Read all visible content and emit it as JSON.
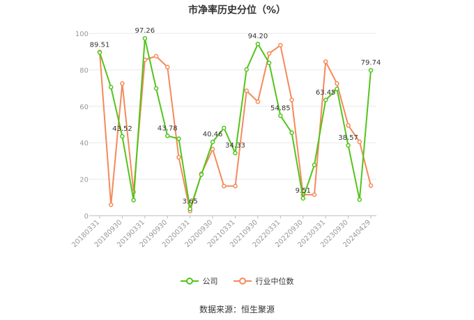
{
  "title": "市净率历史分位（%）",
  "source": "数据来源：恒生聚源",
  "colors": {
    "company": "#52c41a",
    "industry": "#f5895a",
    "grid": "#e8e8e8",
    "axis": "#bbbbbb"
  },
  "chart_data": {
    "type": "line",
    "title": "市净率历史分位（%）",
    "xlabel": "",
    "ylabel": "",
    "ylim": [
      0,
      100
    ],
    "yticks": [
      0,
      20,
      40,
      60,
      80,
      100
    ],
    "grid": true,
    "legend_position": "bottom",
    "x": [
      "20180331",
      "20180630",
      "20180930",
      "20181231",
      "20190331",
      "20190630",
      "20190930",
      "20191231",
      "20200331",
      "20200630",
      "20200930",
      "20201231",
      "20210331",
      "20210630",
      "20210930",
      "20211231",
      "20220331",
      "20220630",
      "20220930",
      "20221231",
      "20230331",
      "20230630",
      "20230930",
      "20231231",
      "20240429"
    ],
    "x_tick_labels": [
      "20180331",
      "20180930",
      "20190331",
      "20190930",
      "20200331",
      "20200930",
      "20210331",
      "20210930",
      "20220331",
      "20220930",
      "20230331",
      "20230930",
      "20240429"
    ],
    "series": [
      {
        "name": "公司",
        "color": "#52c41a",
        "values": [
          89.51,
          70.5,
          43.52,
          8.5,
          97.26,
          69.8,
          43.78,
          42.2,
          3.65,
          22.5,
          40.46,
          48.1,
          34.33,
          80.2,
          94.2,
          83.8,
          54.85,
          45.5,
          9.51,
          27.8,
          63.45,
          69.5,
          38.57,
          8.8,
          79.74
        ]
      },
      {
        "name": "行业中位数",
        "color": "#f5895a",
        "values": [
          89.8,
          6,
          72.5,
          13,
          85.5,
          87.5,
          81.5,
          32,
          2.5,
          23,
          36.5,
          16.2,
          16.2,
          68.5,
          62.5,
          89,
          93.5,
          63.5,
          11.5,
          11.5,
          84.5,
          72.5,
          49.5,
          40.5,
          16.5
        ]
      }
    ],
    "data_labels": [
      {
        "index": 0,
        "text": "89.51"
      },
      {
        "index": 2,
        "text": "43.52"
      },
      {
        "index": 4,
        "text": "97.26"
      },
      {
        "index": 6,
        "text": "43.78"
      },
      {
        "index": 8,
        "text": "3.65"
      },
      {
        "index": 10,
        "text": "40.46"
      },
      {
        "index": 12,
        "text": "34.33"
      },
      {
        "index": 14,
        "text": "94.20"
      },
      {
        "index": 16,
        "text": "54.85"
      },
      {
        "index": 18,
        "text": "9.51"
      },
      {
        "index": 20,
        "text": "63.45"
      },
      {
        "index": 22,
        "text": "38.57"
      },
      {
        "index": 24,
        "text": "79.74"
      }
    ]
  },
  "legend": [
    {
      "label": "公司",
      "color": "#52c41a"
    },
    {
      "label": "行业中位数",
      "color": "#f5895a"
    }
  ]
}
